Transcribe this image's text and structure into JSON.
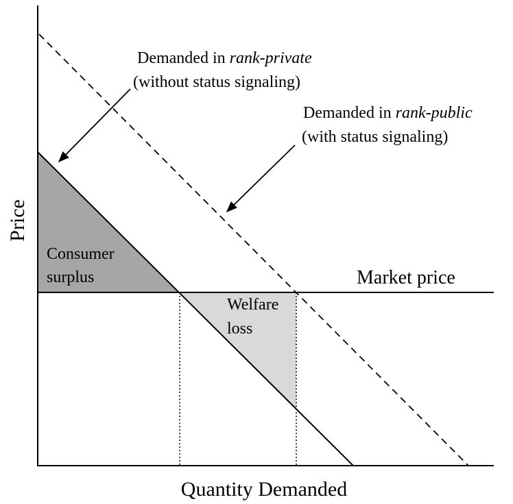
{
  "axes": {
    "y_label": "Price",
    "x_label": "Quantity Demanded"
  },
  "annotations": {
    "private": {
      "prefix": "Demanded in",
      "emphasis": "rank-private",
      "note": "(without status signaling)"
    },
    "public": {
      "prefix": "Demanded in",
      "emphasis": "rank-public",
      "note": "(with status signaling)"
    }
  },
  "market_price": "Market price",
  "regions": {
    "consumer_surplus": [
      "Consumer",
      "surplus"
    ],
    "welfare_loss": [
      "Welfare",
      "loss"
    ]
  }
}
